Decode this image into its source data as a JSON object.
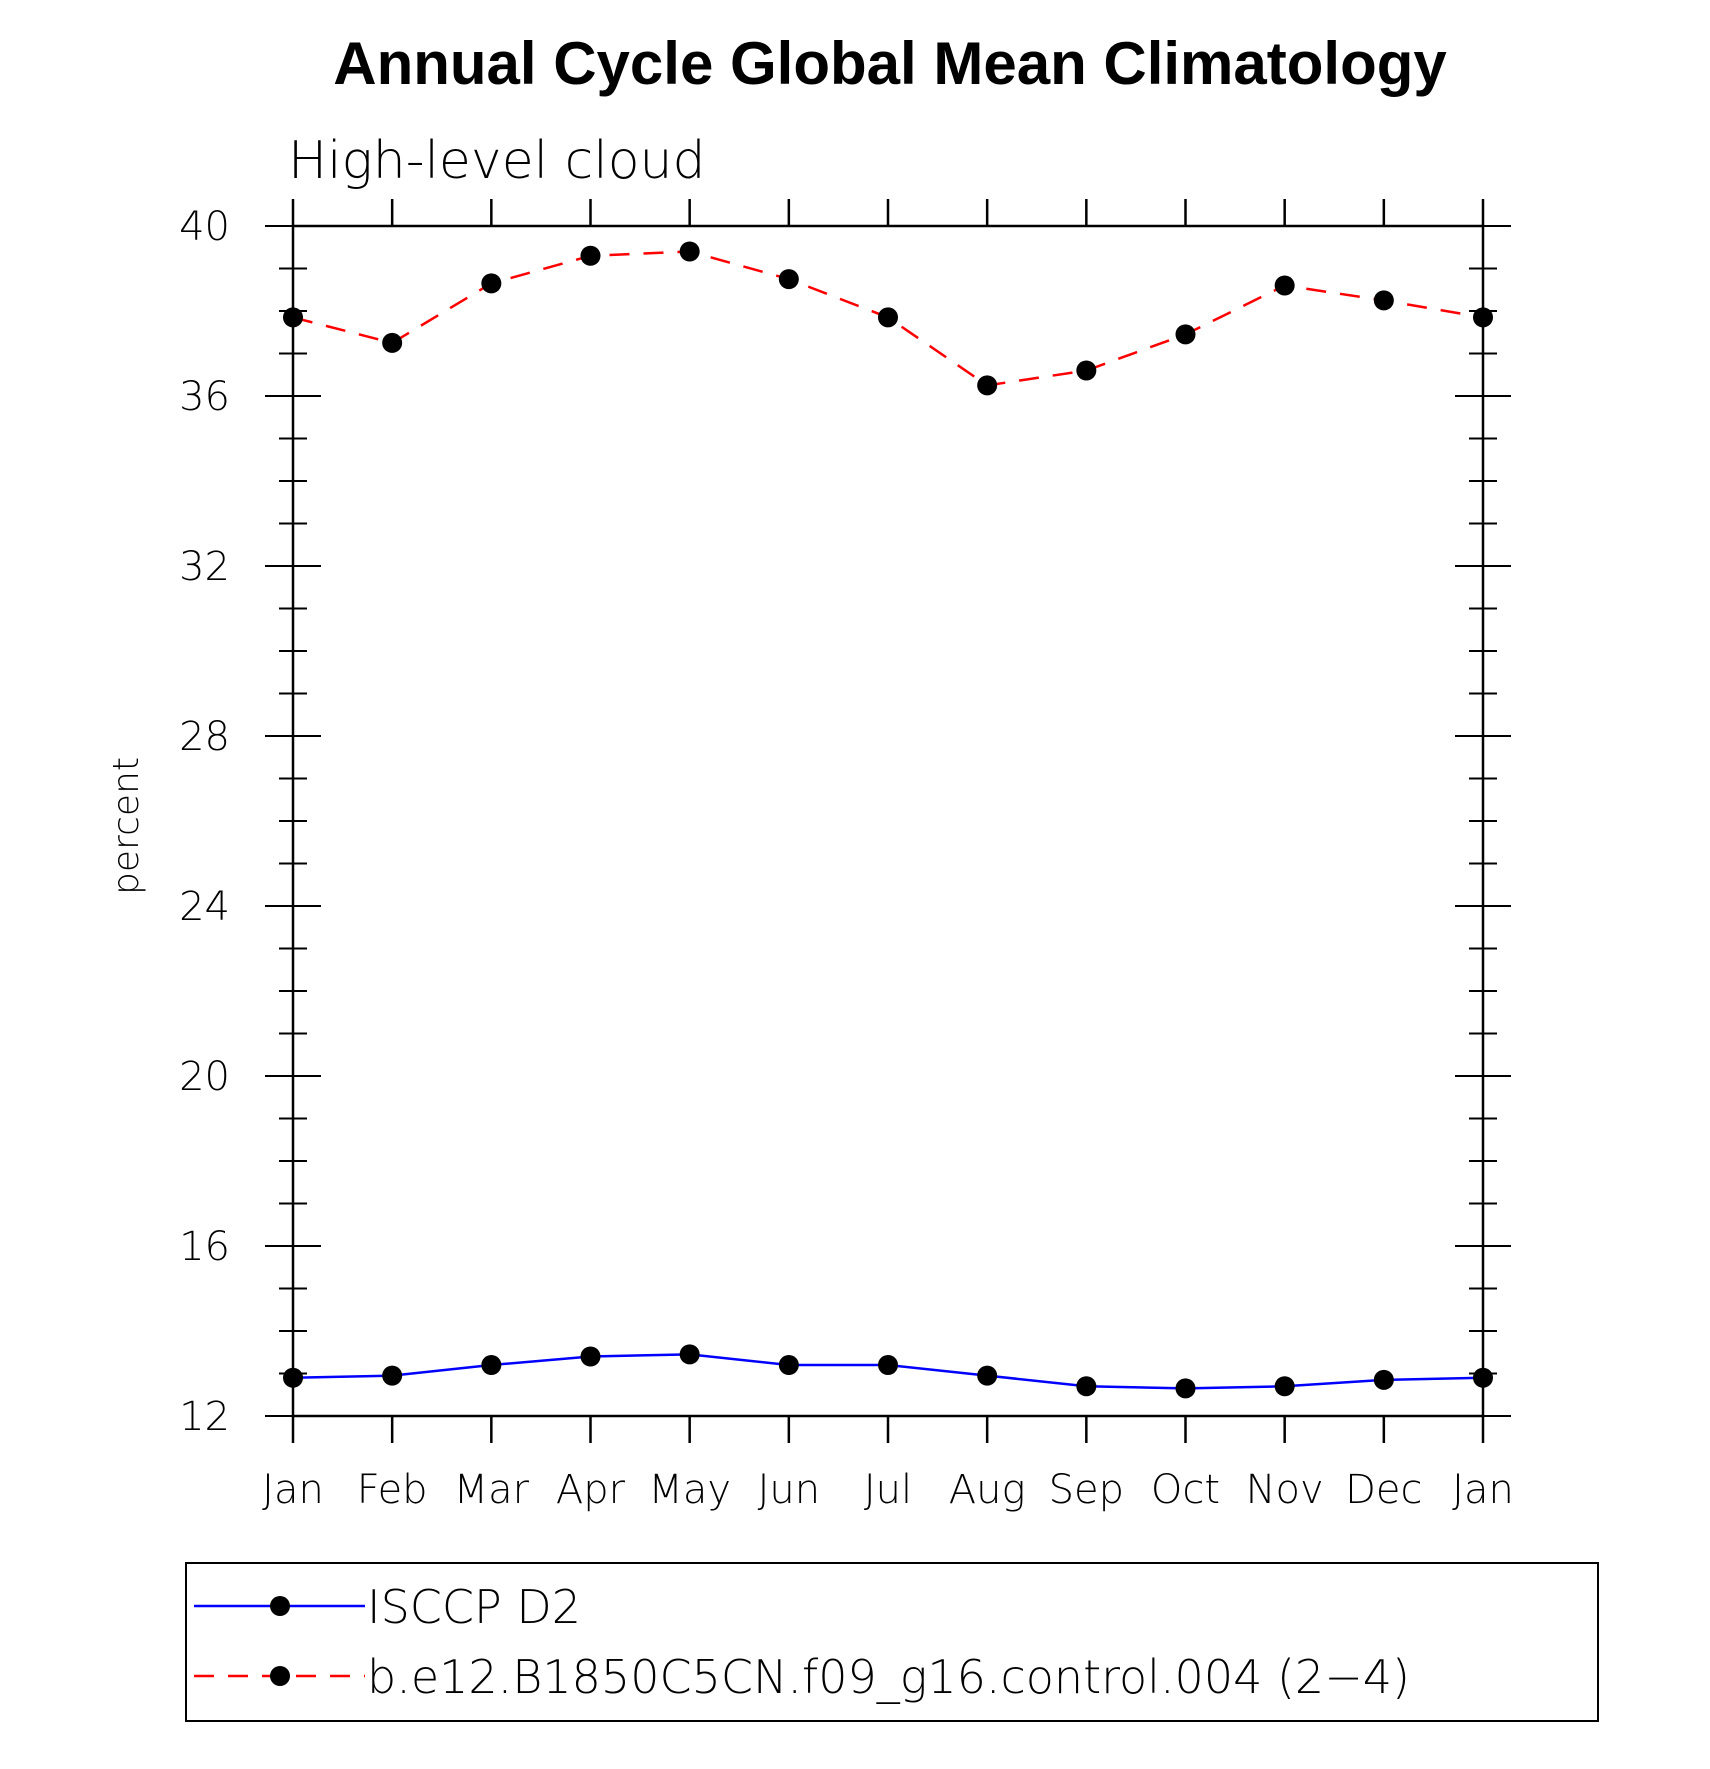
{
  "chart_data": {
    "type": "line",
    "title": "Annual Cycle Global Mean Climatology",
    "subtitle": "High-level cloud",
    "xlabel": "",
    "ylabel": "percent",
    "categories": [
      "Jan",
      "Feb",
      "Mar",
      "Apr",
      "May",
      "Jun",
      "Jul",
      "Aug",
      "Sep",
      "Oct",
      "Nov",
      "Dec",
      "Jan"
    ],
    "ylim": [
      12,
      40
    ],
    "yticks": [
      12,
      16,
      20,
      24,
      28,
      32,
      36,
      40
    ],
    "series": [
      {
        "name": "ISCCP D2",
        "color": "#0000ff",
        "dash": "solid",
        "values": [
          12.9,
          12.95,
          13.2,
          13.4,
          13.45,
          13.2,
          13.2,
          12.95,
          12.7,
          12.65,
          12.7,
          12.85,
          12.9
        ]
      },
      {
        "name": "b.e12.B1850C5CN.f09_g16.control.004 (2−4)",
        "color": "#ff0000",
        "dash": "dashed",
        "values": [
          37.85,
          37.25,
          38.65,
          39.3,
          39.4,
          38.75,
          37.85,
          36.25,
          36.6,
          37.45,
          38.6,
          38.25,
          37.85
        ]
      }
    ]
  }
}
